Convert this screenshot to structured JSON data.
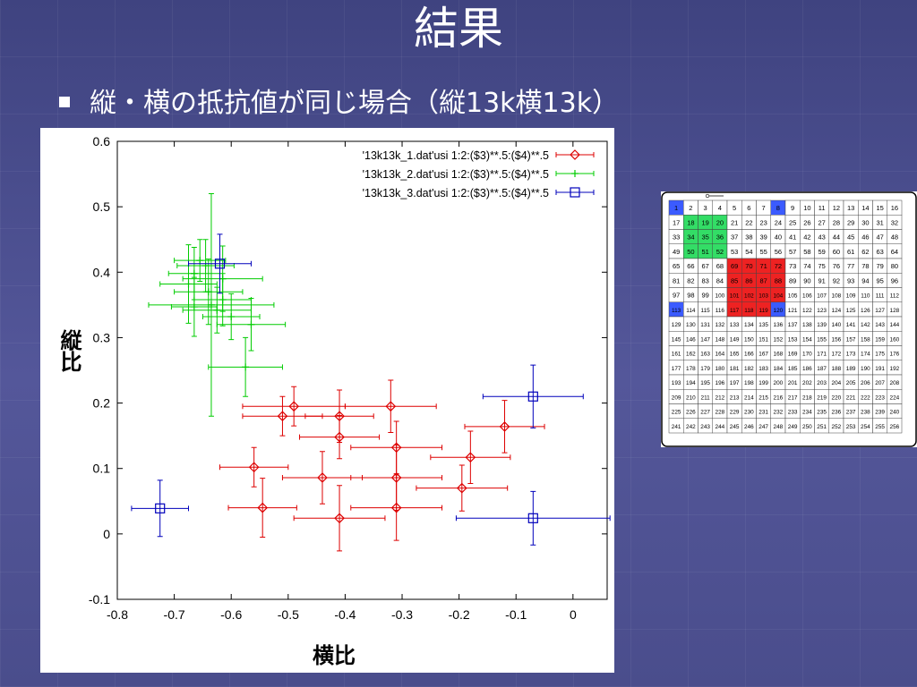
{
  "slide": {
    "title": "結果",
    "bullet": "縦・横の抵抗値が同じ場合（縦13k横13k）"
  },
  "colors": {
    "background": "#4c4f8c",
    "series_red": "#dd0000",
    "series_green": "#00cc00",
    "series_blue": "#0000bb",
    "cell_blue": "#3b5bff",
    "cell_green": "#33dd66",
    "cell_red": "#ee2222"
  },
  "chart_data": {
    "type": "scatter",
    "xlabel": "横比",
    "ylabel": "縦比",
    "xlim": [
      -0.8,
      0.06
    ],
    "ylim": [
      -0.1,
      0.6
    ],
    "x_ticks": [
      "-0.8",
      "-0.7",
      "-0.6",
      "-0.5",
      "-0.4",
      "-0.3",
      "-0.2",
      "-0.1",
      "0"
    ],
    "y_ticks": [
      "-0.1",
      "0",
      "0.1",
      "0.2",
      "0.3",
      "0.4",
      "0.5",
      "0.6"
    ],
    "legend_position": "top-right",
    "series": [
      {
        "name": "'13k13k_1.dat'usi 1:2:($3)**.5:($4)**.5",
        "marker": "diamond",
        "color": "#dd0000",
        "points": [
          {
            "x": -0.49,
            "y": 0.195,
            "xerr": 0.09,
            "yerr": 0.03
          },
          {
            "x": -0.51,
            "y": 0.18,
            "xerr": 0.07,
            "yerr": 0.03
          },
          {
            "x": -0.41,
            "y": 0.18,
            "xerr": 0.06,
            "yerr": 0.04
          },
          {
            "x": -0.32,
            "y": 0.195,
            "xerr": 0.08,
            "yerr": 0.04
          },
          {
            "x": -0.41,
            "y": 0.148,
            "xerr": 0.07,
            "yerr": 0.033
          },
          {
            "x": -0.31,
            "y": 0.132,
            "xerr": 0.08,
            "yerr": 0.04
          },
          {
            "x": -0.12,
            "y": 0.164,
            "xerr": 0.07,
            "yerr": 0.04
          },
          {
            "x": -0.18,
            "y": 0.117,
            "xerr": 0.07,
            "yerr": 0.04
          },
          {
            "x": -0.56,
            "y": 0.102,
            "xerr": 0.06,
            "yerr": 0.03
          },
          {
            "x": -0.44,
            "y": 0.086,
            "xerr": 0.07,
            "yerr": 0.04
          },
          {
            "x": -0.31,
            "y": 0.086,
            "xerr": 0.08,
            "yerr": 0.05
          },
          {
            "x": -0.195,
            "y": 0.07,
            "xerr": 0.08,
            "yerr": 0.035
          },
          {
            "x": -0.545,
            "y": 0.04,
            "xerr": 0.06,
            "yerr": 0.045
          },
          {
            "x": -0.41,
            "y": 0.024,
            "xerr": 0.08,
            "yerr": 0.05
          },
          {
            "x": -0.31,
            "y": 0.04,
            "xerr": 0.08,
            "yerr": 0.05
          }
        ]
      },
      {
        "name": "'13k13k_2.dat'usi 1:2:($3)**.5:($4)**.5",
        "marker": "plus",
        "color": "#00cc00",
        "points": [
          {
            "x": -0.635,
            "y": 0.35,
            "xerr": 0.11,
            "yerr": 0.17
          },
          {
            "x": -0.665,
            "y": 0.398,
            "xerr": 0.045,
            "yerr": 0.04
          },
          {
            "x": -0.655,
            "y": 0.418,
            "xerr": 0.045,
            "yerr": 0.032
          },
          {
            "x": -0.645,
            "y": 0.41,
            "xerr": 0.05,
            "yerr": 0.04
          },
          {
            "x": -0.675,
            "y": 0.382,
            "xerr": 0.05,
            "yerr": 0.06
          },
          {
            "x": -0.64,
            "y": 0.37,
            "xerr": 0.06,
            "yerr": 0.05
          },
          {
            "x": -0.615,
            "y": 0.39,
            "xerr": 0.07,
            "yerr": 0.05
          },
          {
            "x": -0.615,
            "y": 0.358,
            "xerr": 0.05,
            "yerr": 0.04
          },
          {
            "x": -0.665,
            "y": 0.347,
            "xerr": 0.04,
            "yerr": 0.045
          },
          {
            "x": -0.625,
            "y": 0.342,
            "xerr": 0.06,
            "yerr": 0.035
          },
          {
            "x": -0.6,
            "y": 0.332,
            "xerr": 0.05,
            "yerr": 0.035
          },
          {
            "x": -0.565,
            "y": 0.32,
            "xerr": 0.06,
            "yerr": 0.04
          },
          {
            "x": -0.575,
            "y": 0.255,
            "xerr": 0.065,
            "yerr": 0.045
          }
        ]
      },
      {
        "name": "'13k13k_3.dat'usi 1:2:($3)**.5:($4)**.5",
        "marker": "square",
        "color": "#0000bb",
        "points": [
          {
            "x": -0.62,
            "y": 0.413,
            "xerr": 0.055,
            "yerr": 0.045
          },
          {
            "x": -0.07,
            "y": 0.21,
            "xerr": 0.088,
            "yerr": 0.048
          },
          {
            "x": -0.725,
            "y": 0.039,
            "xerr": 0.05,
            "yerr": 0.043
          },
          {
            "x": -0.07,
            "y": 0.024,
            "xerr": 0.135,
            "yerr": 0.041
          }
        ]
      }
    ]
  },
  "grid_diagram": {
    "rows": 16,
    "cols": 16,
    "first_number": 1,
    "last_number": 256,
    "blue_cells": [
      1,
      8,
      113,
      120
    ],
    "green_cells": [
      18,
      19,
      20,
      34,
      35,
      36,
      50,
      51,
      52
    ],
    "red_cells": [
      69,
      70,
      71,
      72,
      85,
      86,
      87,
      88,
      101,
      102,
      103,
      104,
      117,
      118,
      119
    ]
  }
}
